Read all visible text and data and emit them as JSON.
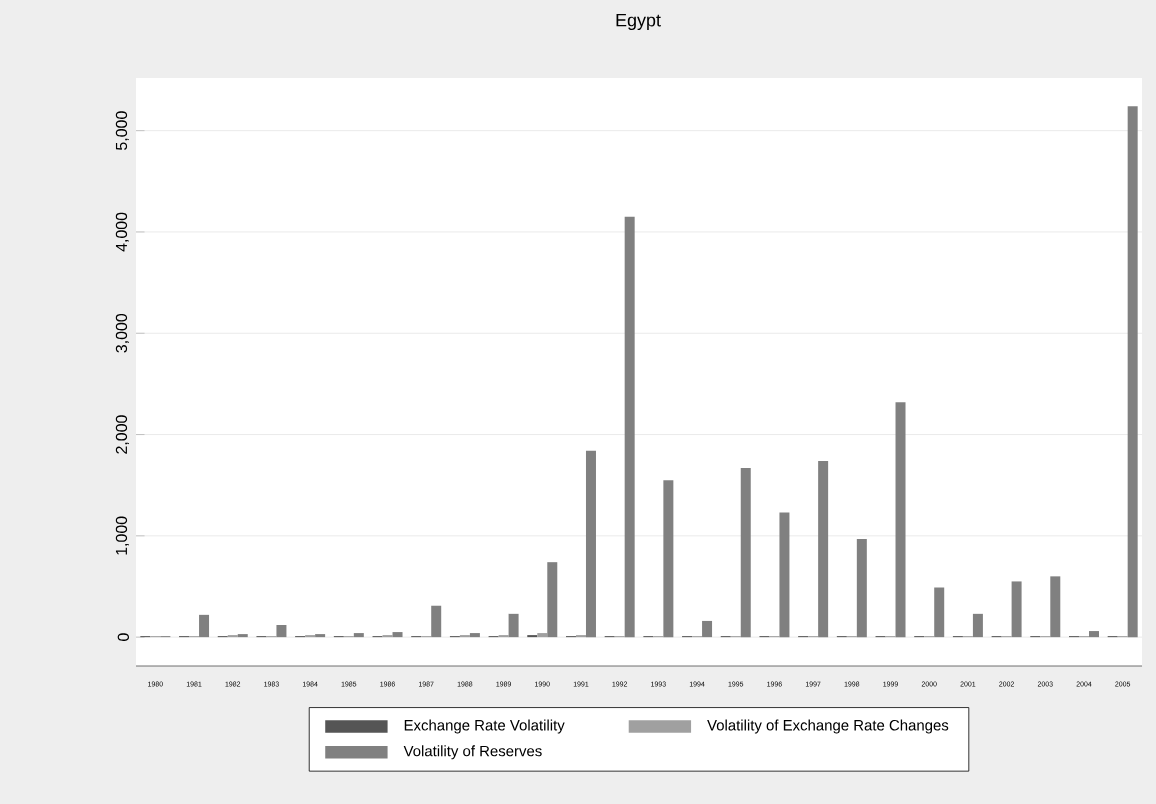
{
  "chart_data": {
    "type": "bar",
    "title": "Egypt",
    "categories": [
      "1980",
      "1981",
      "1982",
      "1983",
      "1984",
      "1985",
      "1986",
      "1987",
      "1988",
      "1989",
      "1990",
      "1991",
      "1992",
      "1993",
      "1994",
      "1995",
      "1996",
      "1997",
      "1998",
      "1999",
      "2000",
      "2001",
      "2002",
      "2003",
      "2004",
      "2005"
    ],
    "series": [
      {
        "name": "Exchange Rate Volatility",
        "color": "#555555",
        "values": [
          10,
          10,
          10,
          10,
          10,
          10,
          10,
          10,
          10,
          10,
          20,
          10,
          10,
          10,
          10,
          10,
          10,
          10,
          10,
          10,
          10,
          10,
          10,
          10,
          10,
          10
        ]
      },
      {
        "name": "Volatility of Exchange Rate Changes",
        "color": "#a0a0a0",
        "values": [
          10,
          10,
          20,
          10,
          20,
          10,
          20,
          10,
          20,
          20,
          40,
          20,
          10,
          10,
          10,
          10,
          10,
          10,
          10,
          10,
          10,
          10,
          10,
          10,
          10,
          10
        ]
      },
      {
        "name": "Volatility of Reserves",
        "color": "#808080",
        "values": [
          10,
          220,
          30,
          120,
          30,
          40,
          50,
          310,
          40,
          230,
          740,
          1840,
          4150,
          1550,
          160,
          1670,
          1230,
          1740,
          970,
          2320,
          490,
          230,
          550,
          600,
          60,
          5240
        ]
      }
    ],
    "ylim": [
      -285,
      5520
    ],
    "yticks": [
      0,
      {
        "value": 1000,
        "label": "1,000"
      },
      {
        "value": 2000,
        "label": "2,000"
      },
      {
        "value": 3000,
        "label": "3,000"
      },
      {
        "value": 4000,
        "label": "4,000"
      },
      {
        "value": 5000,
        "label": "5,000"
      }
    ],
    "grid": "y",
    "legend": "bottom"
  }
}
